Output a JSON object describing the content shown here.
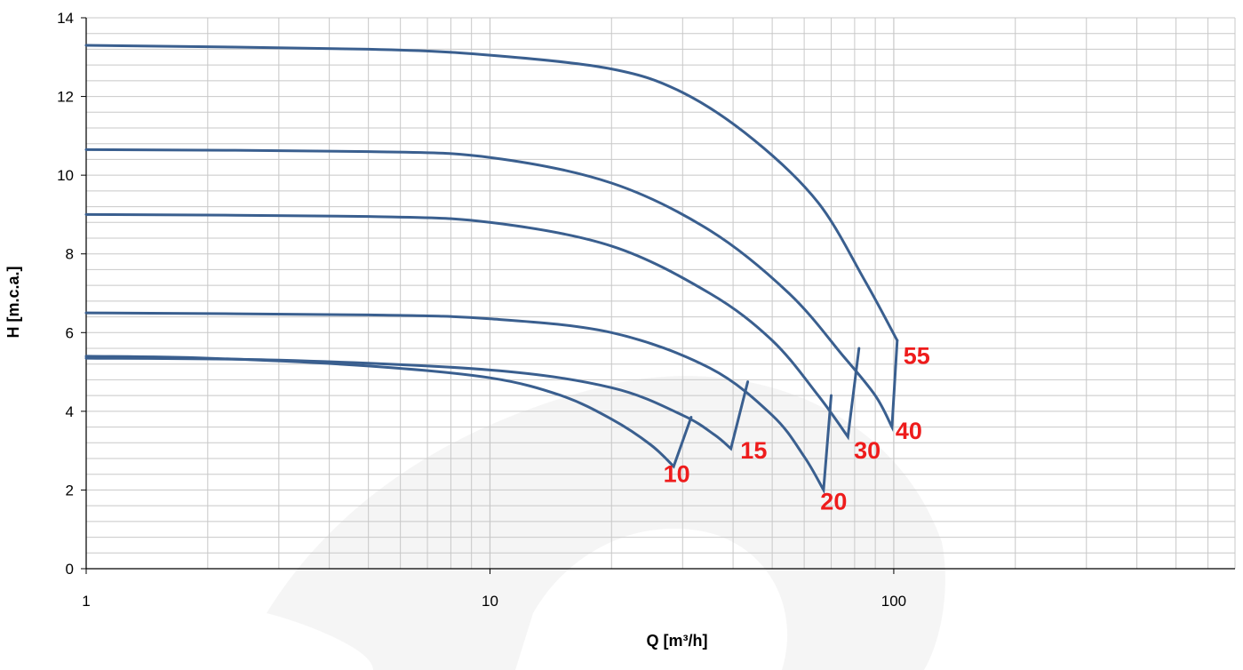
{
  "chart_data": {
    "type": "line",
    "x_scale": "log",
    "xlabel": "Q [m³/h]",
    "ylabel": "H [m.c.a.]",
    "xlim": [
      1,
      700
    ],
    "ylim": [
      0,
      14
    ],
    "x_major_ticks": [
      1,
      10,
      100
    ],
    "x_tick_labels": [
      "1",
      "10",
      "100"
    ],
    "y_ticks": [
      0,
      2,
      4,
      6,
      8,
      10,
      12,
      14
    ],
    "y_tick_labels": [
      "0",
      "2",
      "4",
      "6",
      "8",
      "10",
      "12",
      "14"
    ],
    "grid": true,
    "legend": "none",
    "colors": {
      "curve": "#3a5f8f",
      "label": "#ee1c1c",
      "grid": "#c8c8c8",
      "axis": "#000000"
    },
    "series": [
      {
        "label": "10",
        "points": [
          [
            1,
            5.4
          ],
          [
            2,
            5.35
          ],
          [
            5,
            5.15
          ],
          [
            10,
            4.85
          ],
          [
            15,
            4.4
          ],
          [
            20,
            3.8
          ],
          [
            25,
            3.15
          ],
          [
            28.5,
            2.6
          ]
        ],
        "closing_point": [
          31.5,
          3.85
        ]
      },
      {
        "label": "15",
        "points": [
          [
            1,
            5.35
          ],
          [
            3,
            5.3
          ],
          [
            10,
            5.05
          ],
          [
            20,
            4.6
          ],
          [
            30,
            3.9
          ],
          [
            36,
            3.4
          ],
          [
            39.5,
            3.05
          ]
        ],
        "closing_point": [
          43.5,
          4.75
        ]
      },
      {
        "label": "20",
        "points": [
          [
            1,
            6.5
          ],
          [
            5,
            6.45
          ],
          [
            10,
            6.35
          ],
          [
            20,
            6.0
          ],
          [
            35,
            5.1
          ],
          [
            50,
            3.9
          ],
          [
            60,
            2.85
          ],
          [
            67,
            2.0
          ]
        ],
        "closing_point": [
          70,
          4.4
        ]
      },
      {
        "label": "30",
        "points": [
          [
            1,
            9.0
          ],
          [
            5,
            8.95
          ],
          [
            10,
            8.8
          ],
          [
            20,
            8.2
          ],
          [
            35,
            7.0
          ],
          [
            50,
            5.8
          ],
          [
            65,
            4.4
          ],
          [
            77,
            3.35
          ]
        ],
        "closing_point": [
          82,
          5.6
        ]
      },
      {
        "label": "40",
        "points": [
          [
            1,
            10.65
          ],
          [
            5,
            10.6
          ],
          [
            10,
            10.45
          ],
          [
            20,
            9.8
          ],
          [
            35,
            8.6
          ],
          [
            55,
            7.0
          ],
          [
            75,
            5.4
          ],
          [
            90,
            4.4
          ],
          [
            99,
            3.6
          ]
        ],
        "closing_point": [
          102,
          5.8
        ]
      },
      {
        "label": "55",
        "points": [
          [
            1,
            13.3
          ],
          [
            5,
            13.2
          ],
          [
            10,
            13.05
          ],
          [
            20,
            12.7
          ],
          [
            30,
            12.1
          ],
          [
            45,
            10.9
          ],
          [
            65,
            9.3
          ],
          [
            85,
            7.3
          ],
          [
            102,
            5.8
          ]
        ],
        "closing_point": null
      }
    ],
    "annotations": [
      {
        "text": "10",
        "x": 29,
        "y": 2.2
      },
      {
        "text": "15",
        "x": 45,
        "y": 2.8
      },
      {
        "text": "20",
        "x": 71,
        "y": 1.5
      },
      {
        "text": "30",
        "x": 86,
        "y": 2.8
      },
      {
        "text": "40",
        "x": 109,
        "y": 3.3
      },
      {
        "text": "55",
        "x": 114,
        "y": 5.2
      }
    ]
  }
}
